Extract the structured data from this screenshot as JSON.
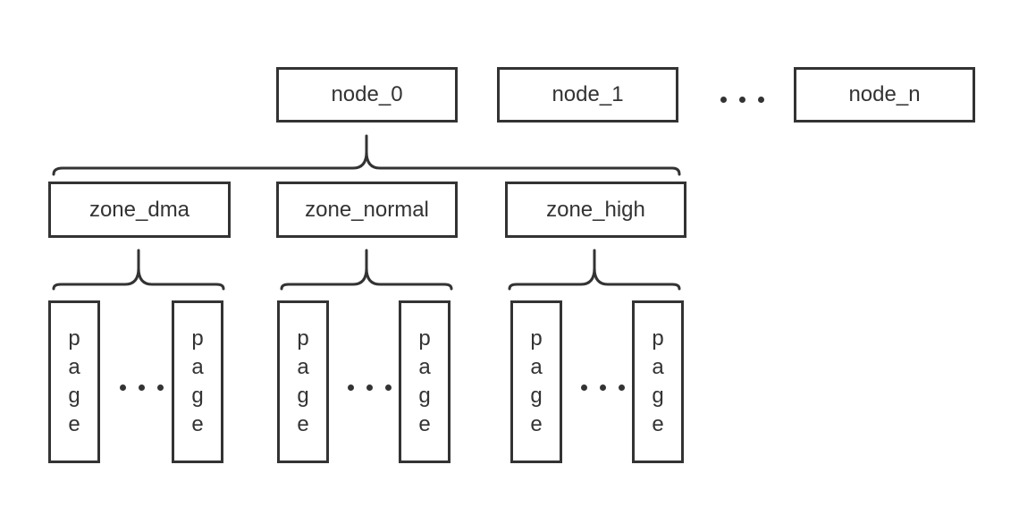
{
  "nodes": [
    {
      "label": "node_0"
    },
    {
      "label": "node_1"
    },
    {
      "label": "node_n"
    }
  ],
  "zones": [
    {
      "label": "zone_dma"
    },
    {
      "label": "zone_normal"
    },
    {
      "label": "zone_high"
    }
  ],
  "page_label": "page",
  "ellipsis_symbol": "• • •",
  "colors": {
    "stroke": "#333333",
    "background": "#ffffff"
  }
}
